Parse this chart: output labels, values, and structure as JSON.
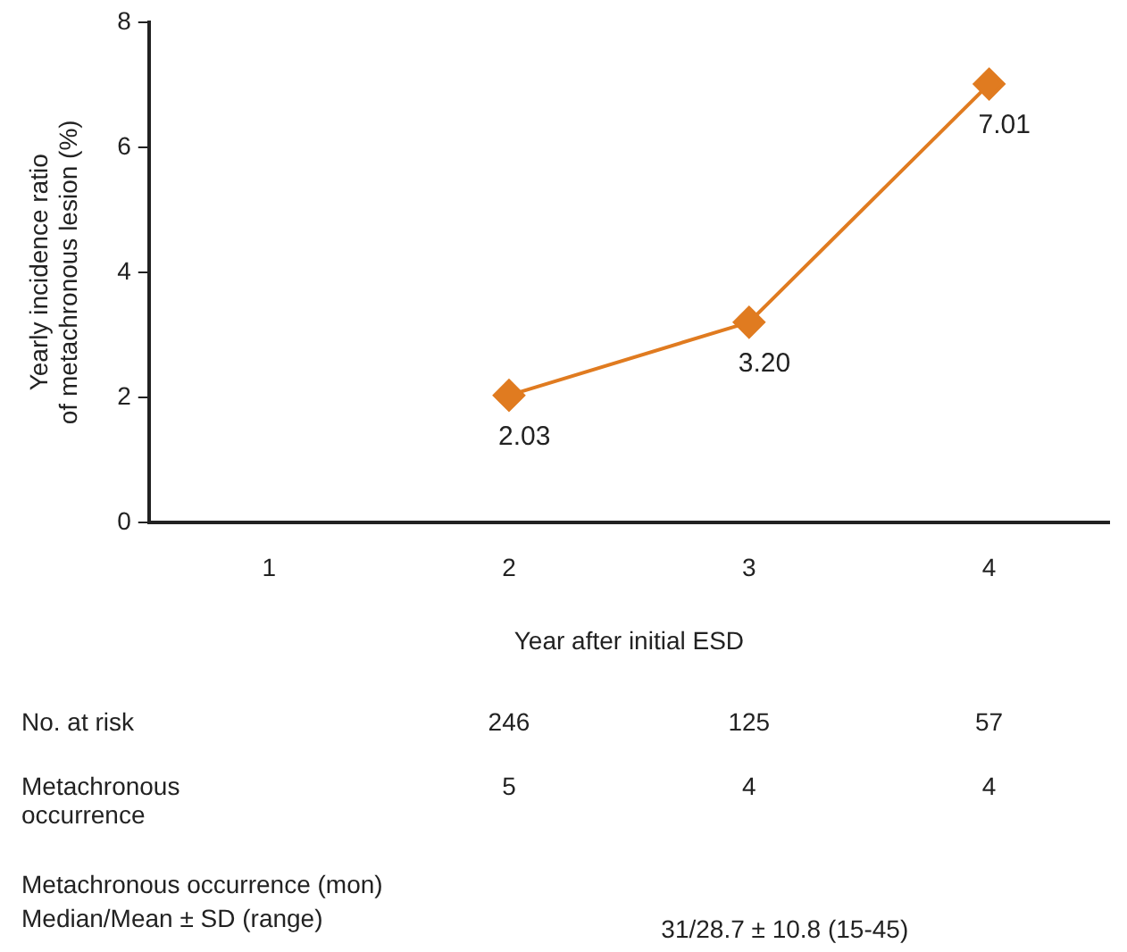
{
  "chart_data": {
    "type": "line",
    "xlabel": "Year after initial ESD",
    "ylabel": "Yearly incidence ratio\nof metachronous lesion (%)",
    "categories": [
      "1",
      "2",
      "3",
      "4"
    ],
    "series": [
      {
        "color": "#e07b20",
        "values": [
          null,
          2.03,
          3.2,
          7.01
        ],
        "value_labels": [
          null,
          "2.03",
          "3.20",
          "7.01"
        ]
      }
    ],
    "ylim": [
      0,
      8
    ],
    "yticks": [
      0,
      2,
      4,
      6,
      8
    ],
    "grid": false,
    "legend": false,
    "marker": "diamond",
    "line_style": "solid",
    "annotations": [
      "No. at risk",
      "246",
      "125",
      "57",
      "Metachronous occurrence",
      "5",
      "4",
      "4",
      "Metachronous occurrence (mon)",
      "Median/Mean ± SD (range)",
      "31/28.7 ± 10.8 (15-45)"
    ]
  }
}
